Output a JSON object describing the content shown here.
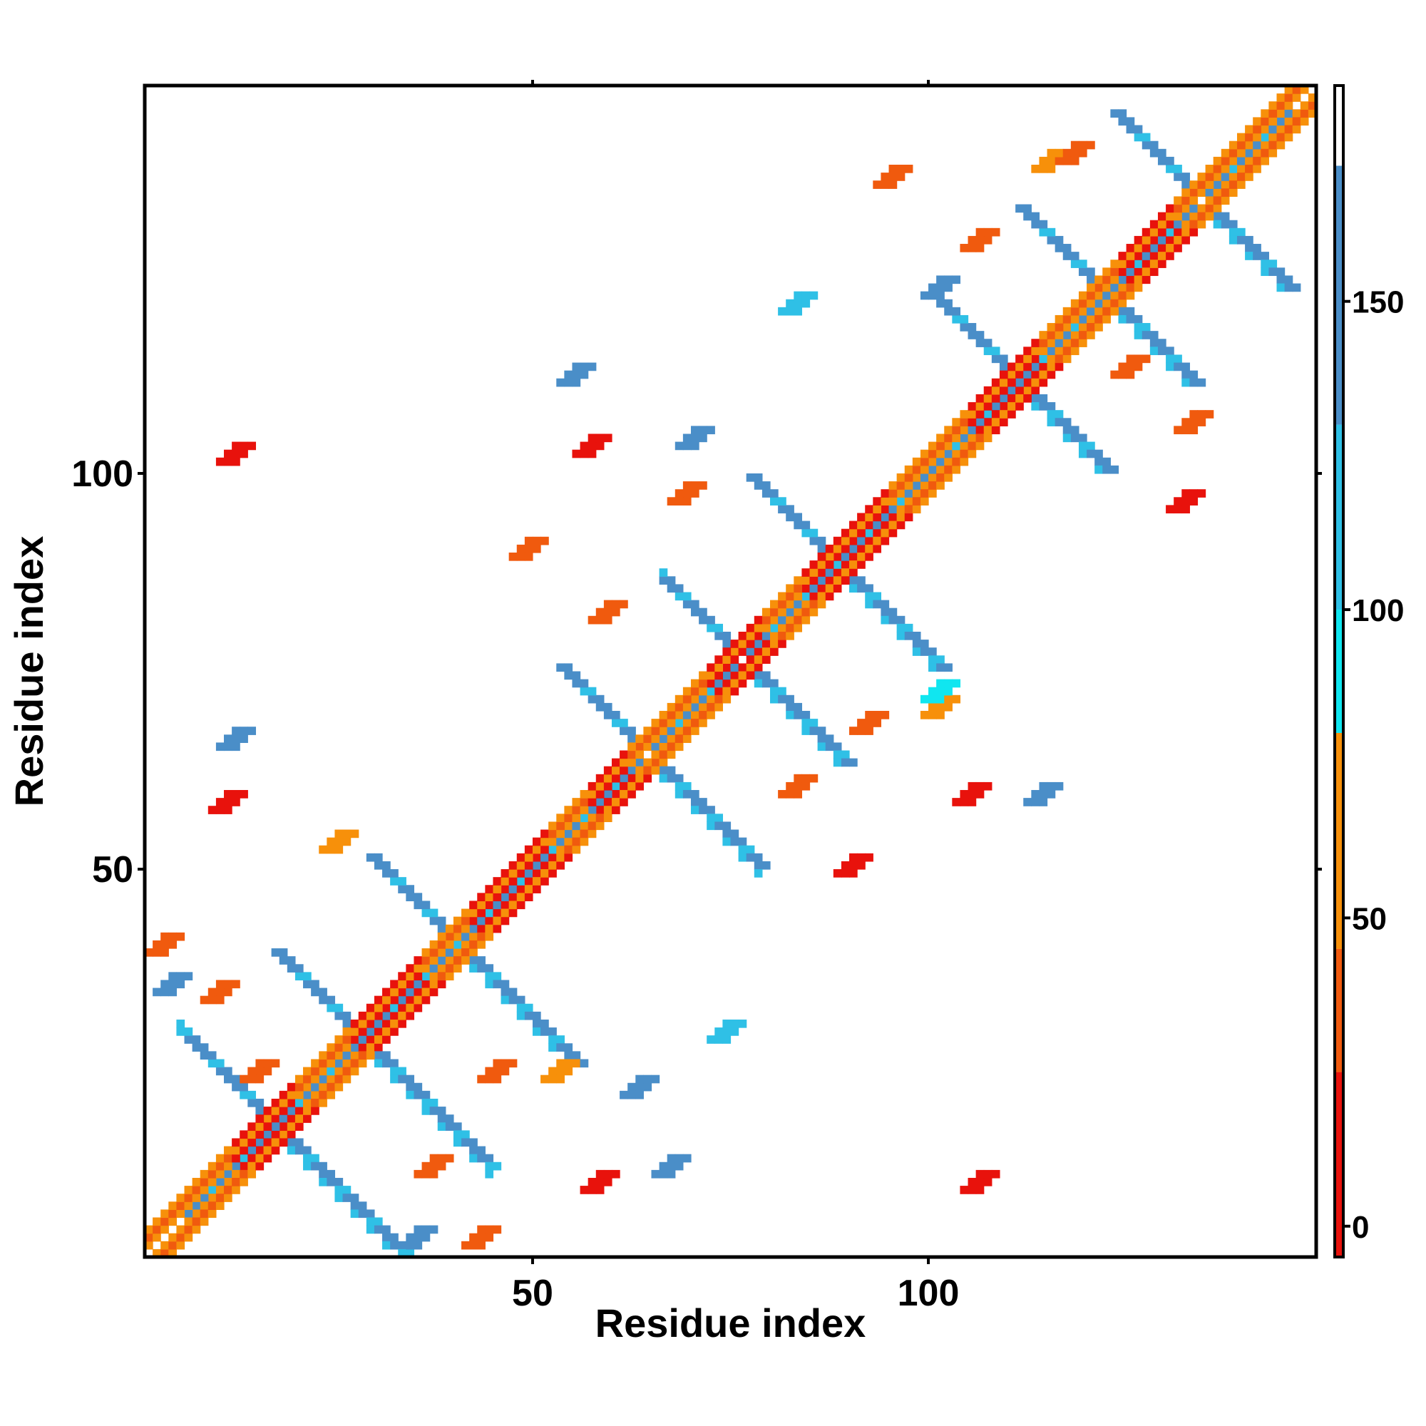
{
  "chart_data": {
    "type": "heatmap",
    "title": "",
    "xlabel": "Residue index",
    "ylabel": "Residue index",
    "xlim": [
      1,
      148
    ],
    "ylim": [
      1,
      148
    ],
    "x_ticks": [
      50,
      100
    ],
    "y_ticks": [
      50,
      100
    ],
    "grid": false,
    "colorbar": {
      "position": "right",
      "ticks": [
        0,
        50,
        100,
        150
      ],
      "range": [
        -5,
        185
      ],
      "bands": [
        {
          "from": -5,
          "to": 25,
          "color": "#e8120c"
        },
        {
          "from": 25,
          "to": 45,
          "color": "#f05a0e"
        },
        {
          "from": 45,
          "to": 80,
          "color": "#f7900a"
        },
        {
          "from": 80,
          "to": 100,
          "color": "#10e6f0"
        },
        {
          "from": 100,
          "to": 130,
          "color": "#2fc0e6"
        },
        {
          "from": 130,
          "to": 172,
          "color": "#4a8ec8"
        },
        {
          "from": 172,
          "to": 185,
          "color": "#ffffff"
        }
      ]
    },
    "colors": {
      "red": "#e8120c",
      "red_orange": "#f05a0e",
      "orange": "#f7900a",
      "cyan": "#10e6f0",
      "sky": "#2fc0e6",
      "steel": "#4a8ec8"
    },
    "diagonal_segments": [
      {
        "from": 1,
        "to": 12,
        "value": 60
      },
      {
        "from": 12,
        "to": 20,
        "value": 10
      },
      {
        "from": 20,
        "to": 27,
        "value": 60
      },
      {
        "from": 27,
        "to": 36,
        "value": 10
      },
      {
        "from": 36,
        "to": 42,
        "value": 60
      },
      {
        "from": 42,
        "to": 52,
        "value": 10
      },
      {
        "from": 52,
        "to": 57,
        "value": 60
      },
      {
        "from": 57,
        "to": 62,
        "value": 10
      },
      {
        "from": 62,
        "to": 72,
        "value": 60
      },
      {
        "from": 72,
        "to": 79,
        "value": 10
      },
      {
        "from": 79,
        "to": 84,
        "value": 60
      },
      {
        "from": 84,
        "to": 95,
        "value": 10
      },
      {
        "from": 95,
        "to": 105,
        "value": 60
      },
      {
        "from": 105,
        "to": 114,
        "value": 10
      },
      {
        "from": 114,
        "to": 124,
        "value": 60
      },
      {
        "from": 124,
        "to": 131,
        "value": 10
      },
      {
        "from": 131,
        "to": 148,
        "value": 60
      }
    ],
    "crosses": [
      {
        "x": 17,
        "y": 17,
        "up": [
          12,
          16
        ],
        "down": [
          11,
          16
        ]
      },
      {
        "x": 28,
        "y": 28,
        "up": [
          11,
          16
        ],
        "down": [
          11,
          16
        ]
      },
      {
        "x": 40,
        "y": 40,
        "up": [
          11,
          15
        ],
        "down": [
          11,
          15
        ]
      },
      {
        "x": 64,
        "y": 64,
        "up": [
          11,
          14
        ],
        "down": [
          10,
          11
        ]
      },
      {
        "x": 76,
        "y": 76,
        "up": [
          10,
          13
        ],
        "down": [
          11,
          16
        ]
      },
      {
        "x": 88,
        "y": 88,
        "up": [
          11,
          13
        ],
        "down": [
          11,
          16
        ]
      },
      {
        "x": 111,
        "y": 111,
        "up": [
          11,
          11
        ],
        "down": [
          11,
          11
        ]
      },
      {
        "x": 122,
        "y": 122,
        "up": [
          11,
          11
        ],
        "down": [
          11,
          11
        ]
      },
      {
        "x": 134,
        "y": 134,
        "up": [
          11,
          11
        ],
        "down": [
          11,
          11
        ]
      }
    ],
    "blobs": [
      {
        "x": 11,
        "y": 58,
        "value": 5
      },
      {
        "x": 12,
        "y": 102,
        "value": 5
      },
      {
        "x": 25,
        "y": 53,
        "value": 60
      },
      {
        "x": 57,
        "y": 103,
        "value": 5
      },
      {
        "x": 58,
        "y": 10,
        "value": 5
      },
      {
        "x": 49,
        "y": 90,
        "value": 40
      },
      {
        "x": 53,
        "y": 24,
        "value": 60
      },
      {
        "x": 70,
        "y": 104,
        "value": 130
      },
      {
        "x": 69,
        "y": 97,
        "value": 40
      },
      {
        "x": 59,
        "y": 82,
        "value": 40
      },
      {
        "x": 45,
        "y": 24,
        "value": 40
      },
      {
        "x": 37,
        "y": 12,
        "value": 40
      },
      {
        "x": 15,
        "y": 24,
        "value": 40
      },
      {
        "x": 10,
        "y": 34,
        "value": 40
      },
      {
        "x": 3,
        "y": 40,
        "value": 30
      },
      {
        "x": 43,
        "y": 3,
        "value": 40
      },
      {
        "x": 105,
        "y": 59,
        "value": 5
      },
      {
        "x": 90,
        "y": 50,
        "value": 10
      },
      {
        "x": 83,
        "y": 60,
        "value": 40
      },
      {
        "x": 92,
        "y": 68,
        "value": 40
      },
      {
        "x": 101,
        "y": 70,
        "value": 60
      },
      {
        "x": 106,
        "y": 10,
        "value": 5
      },
      {
        "x": 132,
        "y": 96,
        "value": 10
      },
      {
        "x": 133,
        "y": 106,
        "value": 40
      },
      {
        "x": 125,
        "y": 113,
        "value": 40
      },
      {
        "x": 106,
        "y": 129,
        "value": 40
      },
      {
        "x": 95,
        "y": 137,
        "value": 30
      },
      {
        "x": 115,
        "y": 139,
        "value": 60
      },
      {
        "x": 118,
        "y": 140,
        "value": 40
      },
      {
        "x": 101,
        "y": 123,
        "value": 130
      },
      {
        "x": 114,
        "y": 59,
        "value": 130
      },
      {
        "x": 101,
        "y": 72,
        "value": 90
      },
      {
        "x": 63,
        "y": 22,
        "value": 130
      },
      {
        "x": 67,
        "y": 12,
        "value": 130
      },
      {
        "x": 35,
        "y": 3,
        "value": 150
      },
      {
        "x": 74,
        "y": 29,
        "value": 110
      },
      {
        "x": 55,
        "y": 112,
        "value": 140
      },
      {
        "x": 83,
        "y": 121,
        "value": 110
      },
      {
        "x": 12,
        "y": 66,
        "value": 130
      },
      {
        "x": 4,
        "y": 35,
        "value": 150
      }
    ]
  }
}
